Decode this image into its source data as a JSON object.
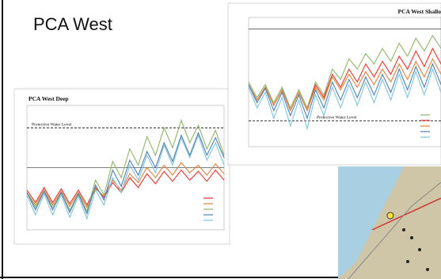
{
  "slide": {
    "title": "PCA West"
  },
  "chart_data": [
    {
      "type": "line",
      "title": "PCA West Deep",
      "protective_level": {
        "label": "Protective Water Level",
        "value": 82
      },
      "reference_level": 50,
      "ylim": [
        0,
        100
      ],
      "categories": [
        null,
        null,
        null,
        null,
        null,
        null,
        null,
        null,
        null,
        null,
        null,
        null,
        null,
        null,
        null,
        null,
        null,
        null,
        null,
        null,
        null,
        null,
        null,
        null
      ],
      "series": [
        {
          "color": "#e8302a",
          "values": [
            32,
            22,
            34,
            22,
            33,
            21,
            32,
            20,
            34,
            26,
            38,
            30,
            42,
            34,
            45,
            37,
            47,
            39,
            48,
            40,
            47,
            39,
            48,
            40
          ]
        },
        {
          "color": "#d9823c",
          "values": [
            30,
            20,
            32,
            20,
            31,
            19,
            30,
            18,
            33,
            27,
            40,
            32,
            45,
            38,
            50,
            42,
            52,
            44,
            54,
            46,
            52,
            44,
            53,
            45
          ]
        },
        {
          "color": "#8fb46a",
          "values": [
            30,
            18,
            31,
            18,
            30,
            16,
            29,
            15,
            40,
            28,
            55,
            42,
            65,
            52,
            75,
            60,
            82,
            66,
            88,
            70,
            84,
            65,
            80,
            60
          ]
        },
        {
          "color": "#4f7fae",
          "values": [
            30,
            16,
            31,
            16,
            30,
            14,
            29,
            13,
            36,
            24,
            48,
            35,
            56,
            44,
            63,
            50,
            70,
            55,
            76,
            60,
            78,
            60,
            74,
            58
          ]
        },
        {
          "color": "#7fc3dc",
          "values": [
            28,
            12,
            29,
            12,
            28,
            10,
            27,
            9,
            32,
            20,
            42,
            30,
            52,
            40,
            60,
            46,
            68,
            52,
            74,
            58,
            76,
            56,
            70,
            52
          ]
        }
      ]
    },
    {
      "type": "line",
      "title": "PCA West Shallo",
      "protective_level": {
        "label": "Protective Water Level",
        "value": 20
      },
      "reference_level": 91,
      "ylim": [
        0,
        100
      ],
      "categories": [
        null,
        null,
        null,
        null,
        null,
        null,
        null,
        null,
        null,
        null,
        null,
        null,
        null,
        null,
        null,
        null,
        null,
        null,
        null,
        null,
        null,
        null,
        null,
        null
      ],
      "series": [
        {
          "color": "#8fb46a",
          "values": [
            50,
            38,
            48,
            34,
            46,
            30,
            44,
            30,
            50,
            40,
            60,
            52,
            68,
            60,
            72,
            64,
            76,
            66,
            80,
            70,
            84,
            74,
            86,
            76
          ]
        },
        {
          "color": "#e8302a",
          "values": [
            48,
            36,
            46,
            32,
            44,
            28,
            42,
            28,
            48,
            38,
            56,
            46,
            60,
            50,
            64,
            54,
            66,
            56,
            70,
            60,
            74,
            62,
            76,
            64
          ]
        },
        {
          "color": "#d9823c",
          "values": [
            48,
            36,
            46,
            32,
            44,
            28,
            42,
            28,
            46,
            36,
            54,
            44,
            56,
            46,
            58,
            48,
            60,
            50,
            64,
            52,
            66,
            54,
            68,
            56
          ]
        },
        {
          "color": "#4f7fae",
          "values": [
            48,
            34,
            45,
            28,
            42,
            24,
            40,
            22,
            44,
            30,
            50,
            36,
            52,
            38,
            54,
            40,
            56,
            42,
            60,
            44,
            62,
            46,
            64,
            48
          ]
        },
        {
          "color": "#7fc3dc",
          "values": [
            46,
            30,
            42,
            22,
            38,
            16,
            36,
            14,
            40,
            24,
            46,
            30,
            48,
            32,
            50,
            34,
            52,
            36,
            56,
            38,
            58,
            40,
            60,
            42
          ]
        }
      ]
    }
  ]
}
